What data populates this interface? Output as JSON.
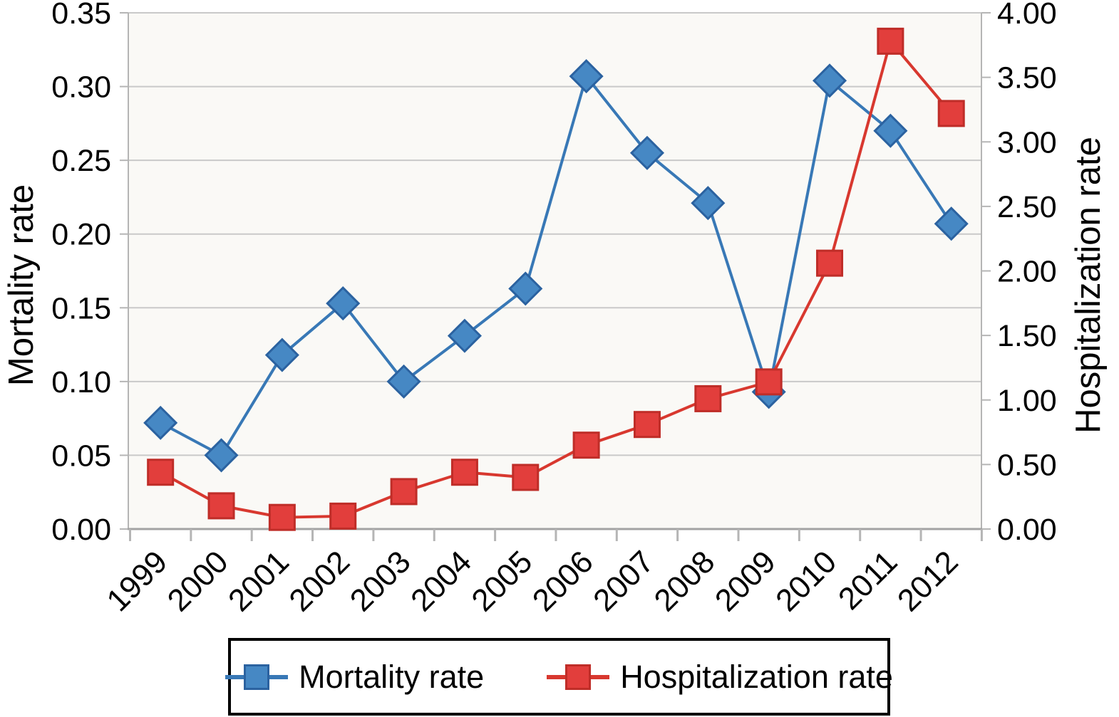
{
  "chart_data": {
    "type": "line",
    "title": "",
    "categories": [
      "1999",
      "2000",
      "2001",
      "2002",
      "2003",
      "2004",
      "2005",
      "2006",
      "2007",
      "2008",
      "2009",
      "2010",
      "2011",
      "2012"
    ],
    "series": [
      {
        "name": "Mortality rate",
        "axis": "left",
        "marker": "diamond",
        "line_color": "#3878b6",
        "marker_fill": "#4688c4",
        "marker_stroke": "#2b62a0",
        "values": [
          0.072,
          0.05,
          0.118,
          0.153,
          0.1,
          0.131,
          0.163,
          0.307,
          0.255,
          0.221,
          0.093,
          0.304,
          0.27,
          0.207
        ]
      },
      {
        "name": "Hospitalization rate",
        "axis": "right",
        "marker": "square",
        "line_color": "#d8382f",
        "marker_fill": "#e23e3c",
        "marker_stroke": "#bf2d28",
        "values": [
          0.44,
          0.18,
          0.09,
          0.1,
          0.29,
          0.44,
          0.4,
          0.65,
          0.81,
          1.01,
          1.14,
          2.06,
          3.78,
          3.22
        ]
      }
    ],
    "left_axis": {
      "label": "Mortality rate",
      "min": 0,
      "max": 0.35,
      "tick_labels": [
        "0.00",
        "0.05",
        "0.10",
        "0.15",
        "0.20",
        "0.25",
        "0.30",
        "0.35"
      ]
    },
    "right_axis": {
      "label": "Hospitalization rate",
      "min": 0,
      "max": 4,
      "tick_labels": [
        "0.00",
        "0.50",
        "1.00",
        "1.50",
        "2.00",
        "2.50",
        "3.00",
        "3.50",
        "4.00"
      ]
    },
    "x_axis": {
      "tick_label_rotation_deg": -45
    },
    "grid": "horizontal",
    "legend_position": "bottom",
    "colors": {
      "grid_line": "#c9c9c9",
      "plot_border": "#b5b5b5",
      "x_axis_line": "#a3a3a3",
      "tick_mark": "#b5b5b5",
      "plot_background": "#faf9f6",
      "text": "#000000"
    }
  }
}
